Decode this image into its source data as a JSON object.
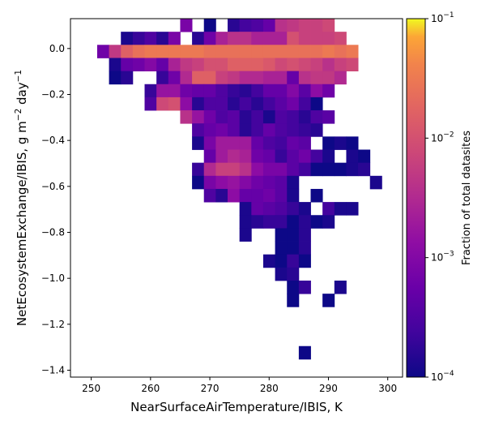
{
  "chart_data": {
    "type": "heatmap",
    "title": "",
    "xlabel": "NearSurfaceAirTemperature/IBIS,  K",
    "ylabel_main": "NetEcosystemExchange/IBIS,  g m",
    "ylabel_exp1": "−2",
    "ylabel_mid": " day",
    "ylabel_exp2": "−1",
    "xlim": [
      246.5,
      302.5
    ],
    "ylim": [
      -1.43,
      0.13
    ],
    "x_ticks": [
      250,
      260,
      270,
      280,
      290,
      300
    ],
    "x_tick_labels": [
      "250",
      "260",
      "270",
      "280",
      "290",
      "300"
    ],
    "y_ticks": [
      0.0,
      -0.2,
      -0.4,
      -0.6,
      -0.8,
      -1.0,
      -1.2,
      -1.4
    ],
    "y_tick_labels": [
      "0.0",
      "−0.2",
      "−0.4",
      "−0.6",
      "−0.8",
      "−1.0",
      "−1.2",
      "−1.4"
    ],
    "x_bin_start": 251,
    "x_bin_width": 2,
    "y_bin_top": 0.13,
    "y_bin_height": 0.057,
    "grid": false,
    "colormap": "plasma",
    "color_scale": "log",
    "colorbar": {
      "label": "Fraction of total datasites",
      "vmin": 0.0001,
      "vmax": 0.1,
      "ticks": [
        {
          "value": 0.1,
          "base": "10",
          "exp": "−1"
        },
        {
          "value": 0.01,
          "base": "10",
          "exp": "−2"
        },
        {
          "value": 0.001,
          "base": "10",
          "exp": "−3"
        },
        {
          "value": 0.0001,
          "base": "10",
          "exp": "−4"
        }
      ]
    },
    "row_note": "Each row: [row index from top, first column index, log10 of fraction for each consecutive column (null = empty)]",
    "rows": [
      [
        0,
        7,
        [
          -3.1,
          null,
          -4.0,
          null,
          -3.8,
          -3.6,
          -3.5,
          -3.3,
          -2.4,
          -2.3,
          -2.2,
          -2.2,
          -2.1
        ]
      ],
      [
        1,
        2,
        [
          -3.9,
          -3.7,
          -3.5,
          -3.8,
          -3.1,
          null,
          -3.8,
          -3.2,
          -2.6,
          -2.4,
          -2.4,
          -2.6,
          -2.6,
          -2.6,
          -2.0,
          -2.2,
          -2.2,
          -2.2,
          -2.1
        ]
      ],
      [
        2,
        0,
        [
          -3.2,
          -2.3,
          -1.8,
          -1.6,
          -1.5,
          -1.5,
          -1.5,
          -1.5,
          -1.5,
          -1.6,
          -1.6,
          -1.6,
          -1.6,
          -1.6,
          -1.6,
          -1.6,
          -1.6,
          -1.6,
          -1.6,
          -1.5,
          -1.6,
          -1.5
        ]
      ],
      [
        3,
        1,
        [
          -3.9,
          -3.3,
          -3.2,
          -3.0,
          -3.3,
          -2.6,
          -2.3,
          -2.2,
          -2.0,
          -2.0,
          -1.8,
          -1.8,
          -1.8,
          -1.9,
          -2.1,
          -2.0,
          -2.1,
          -2.2,
          -2.4,
          -2.2,
          -2.1
        ]
      ],
      [
        4,
        1,
        [
          -4.0,
          -3.8,
          null,
          null,
          -3.7,
          -3.2,
          -2.5,
          -1.8,
          -1.8,
          -2.2,
          -2.3,
          -2.5,
          -2.5,
          -2.6,
          -2.6,
          -3.3,
          -2.4,
          -2.3,
          -2.3,
          -2.5
        ]
      ],
      [
        5,
        4,
        [
          -3.7,
          -2.8,
          -2.8,
          -3.2,
          -3.3,
          -3.3,
          -3.5,
          -3.7,
          -3.8,
          -3.6,
          -3.3,
          -3.3,
          -3.0,
          -3.4,
          -2.9,
          -3.2
        ]
      ],
      [
        6,
        4,
        [
          -3.5,
          -2.1,
          -2.0,
          -2.9,
          -3.8,
          -3.5,
          -3.5,
          -3.8,
          -3.6,
          -3.8,
          -3.6,
          -3.4,
          -3.2,
          -3.6,
          -4.0
        ]
      ],
      [
        7,
        7,
        [
          -2.4,
          -2.8,
          -3.2,
          -3.5,
          -3.4,
          -3.8,
          -3.6,
          -3.9,
          -3.5,
          -3.6,
          -3.8,
          -3.5,
          -3.4
        ]
      ],
      [
        8,
        8,
        [
          -3.5,
          -3.3,
          -3.2,
          -3.4,
          -3.8,
          -3.6,
          -3.3,
          -3.5,
          -3.6,
          -3.7,
          -3.8
        ]
      ],
      [
        9,
        8,
        [
          -3.9,
          -3.1,
          -2.7,
          -2.7,
          -2.7,
          -3.3,
          -3.5,
          -3.6,
          -3.3,
          -3.4,
          null,
          -4.0,
          -3.9,
          -4.0
        ]
      ],
      [
        10,
        9,
        [
          -3.3,
          -2.7,
          -2.5,
          -2.6,
          -3.2,
          -3.3,
          -3.7,
          -3.4,
          -3.2,
          -3.6,
          -3.9,
          null,
          -3.9,
          -4.0
        ]
      ],
      [
        11,
        8,
        [
          -3.7,
          -2.5,
          -2.2,
          -2.2,
          -2.4,
          -2.9,
          -3.1,
          -3.1,
          -3.4,
          -3.6,
          -4.0,
          -4.0,
          -4.0,
          -3.9,
          -3.8
        ]
      ],
      [
        12,
        8,
        [
          -4.0,
          -3.1,
          -2.9,
          -2.8,
          -3.0,
          -3.2,
          -3.3,
          -3.4,
          -3.9,
          null,
          null,
          null,
          null,
          null,
          null,
          -3.9
        ]
      ],
      [
        13,
        9,
        [
          -3.5,
          -3.8,
          -2.9,
          -3.3,
          -3.3,
          -3.2,
          -3.4,
          -3.9,
          null,
          -4.0
        ]
      ],
      [
        14,
        12,
        [
          -3.9,
          -3.3,
          -3.4,
          -3.5,
          -3.7,
          -3.9,
          null,
          -3.6,
          -3.9,
          -3.9
        ]
      ],
      [
        15,
        12,
        [
          -3.9,
          -3.8,
          -3.7,
          -3.7,
          -4.0,
          -3.8,
          -4.0,
          -3.9
        ]
      ],
      [
        16,
        12,
        [
          -3.9,
          null,
          null,
          -4.0,
          -4.0,
          -3.8
        ]
      ],
      [
        17,
        15,
        [
          -4.0,
          -4.0,
          -3.8
        ]
      ],
      [
        18,
        14,
        [
          -3.9,
          -4.0,
          -3.7,
          -4.0
        ]
      ],
      [
        19,
        15,
        [
          -3.9,
          -3.8
        ]
      ],
      [
        20,
        16,
        [
          -4.0,
          -3.7,
          null,
          null,
          -3.9
        ]
      ],
      [
        21,
        16,
        [
          -4.0,
          null,
          null,
          -4.0
        ]
      ],
      [
        25,
        17,
        [
          -4.0
        ]
      ]
    ]
  }
}
